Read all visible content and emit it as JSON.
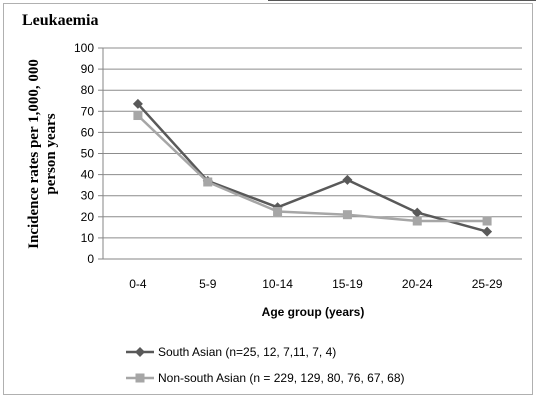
{
  "chart_data": {
    "type": "line",
    "title": "Leukaemia",
    "xlabel": "Age group (years)",
    "ylabel": "Incidence rates per 1,000, 000 person years",
    "ylim": [
      0,
      100
    ],
    "yticks": [
      0,
      10,
      20,
      30,
      40,
      50,
      60,
      70,
      80,
      90,
      100
    ],
    "grid": true,
    "legend_position": "bottom",
    "categories": [
      "0-4",
      "5-9",
      "10-14",
      "15-19",
      "20-24",
      "25-29"
    ],
    "series": [
      {
        "name": "South Asian (n=25, 12, 7,11, 7, 4)",
        "values": [
          73.5,
          37,
          24.5,
          37.5,
          22,
          13
        ],
        "color": "#595959",
        "marker": "diamond"
      },
      {
        "name": "Non-south Asian (n = 229, 129, 80, 76, 67, 68)",
        "values": [
          68,
          36.5,
          22.5,
          21,
          18,
          18
        ],
        "color": "#a6a6a6",
        "marker": "square"
      }
    ]
  }
}
